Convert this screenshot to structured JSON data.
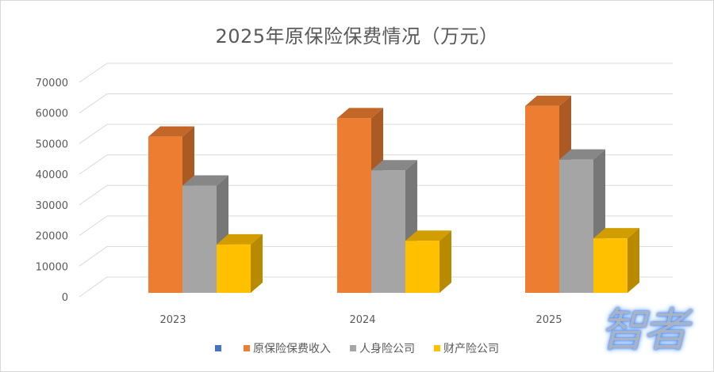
{
  "chart_data": {
    "type": "bar",
    "subtype": "3d-clustered-column",
    "title": "2025年原保险保费情况（万元）",
    "xlabel": "",
    "ylabel": "",
    "categories": [
      "2023",
      "2024",
      "2025"
    ],
    "series": [
      {
        "name": "",
        "color": "#4472c4",
        "values": [
          null,
          null,
          null
        ]
      },
      {
        "name": "原保险保费收入",
        "color": "#ed7d31",
        "values": [
          51000,
          57000,
          61000
        ]
      },
      {
        "name": "人身险公司",
        "color": "#a5a5a5",
        "values": [
          35000,
          40000,
          43500
        ]
      },
      {
        "name": "财产险公司",
        "color": "#ffc000",
        "values": [
          15800,
          17000,
          17800
        ]
      }
    ],
    "ylim": [
      0,
      70000
    ],
    "yticks": [
      0,
      10000,
      20000,
      30000,
      40000,
      50000,
      60000,
      70000
    ],
    "grid": true,
    "legend_position": "bottom"
  },
  "title": "2025年原保险保费情况（万元）",
  "y_axis": {
    "ticks": [
      "70000",
      "60000",
      "50000",
      "40000",
      "30000",
      "20000",
      "10000",
      "0"
    ]
  },
  "x_axis": {
    "labels": [
      "2023",
      "2024",
      "2025"
    ]
  },
  "legend": [
    {
      "label": "",
      "color": "#4472c4"
    },
    {
      "label": "原保险保费收入",
      "color": "#ed7d31"
    },
    {
      "label": "人身险公司",
      "color": "#a5a5a5"
    },
    {
      "label": "财产险公司",
      "color": "#ffc000"
    }
  ],
  "watermark": {
    "text": "智者"
  }
}
